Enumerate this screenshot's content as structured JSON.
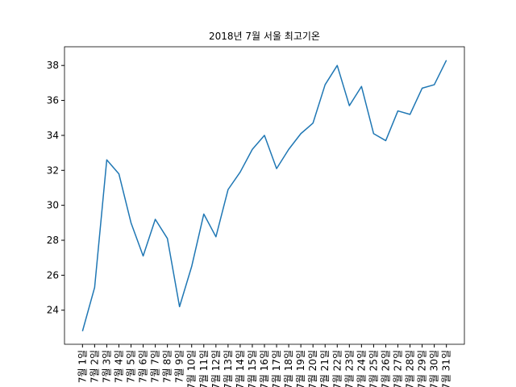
{
  "chart_data": {
    "type": "line",
    "title": "2018년 7월 서울 최고기온",
    "categories": [
      "7월 1일",
      "7월 2일",
      "7월 3일",
      "7월 4일",
      "7월 5일",
      "7월 6일",
      "7월 7일",
      "7월 8일",
      "7월 9일",
      "7월 10일",
      "7월 11일",
      "7월 12일",
      "7월 13일",
      "7월 14일",
      "7월 15일",
      "7월 16일",
      "7월 17일",
      "7월 18일",
      "7월 19일",
      "7월 20일",
      "7월 21일",
      "7월 22일",
      "7월 23일",
      "7월 24일",
      "7월 25일",
      "7월 26일",
      "7월 27일",
      "7월 28일",
      "7월 29일",
      "7월 30일",
      "7월 31일"
    ],
    "values": [
      22.8,
      25.3,
      32.6,
      31.8,
      29.0,
      27.1,
      29.2,
      28.1,
      24.2,
      26.5,
      29.5,
      28.2,
      30.9,
      31.9,
      33.2,
      34.0,
      32.1,
      33.2,
      34.1,
      34.7,
      36.9,
      38.0,
      35.7,
      36.8,
      34.1,
      33.7,
      35.4,
      35.2,
      36.7,
      36.9,
      38.3
    ],
    "color": "#1f77b4",
    "ylim": [
      22.05,
      39.07
    ],
    "yticks": [
      24,
      26,
      28,
      30,
      32,
      34,
      36,
      38
    ],
    "grid": false
  }
}
